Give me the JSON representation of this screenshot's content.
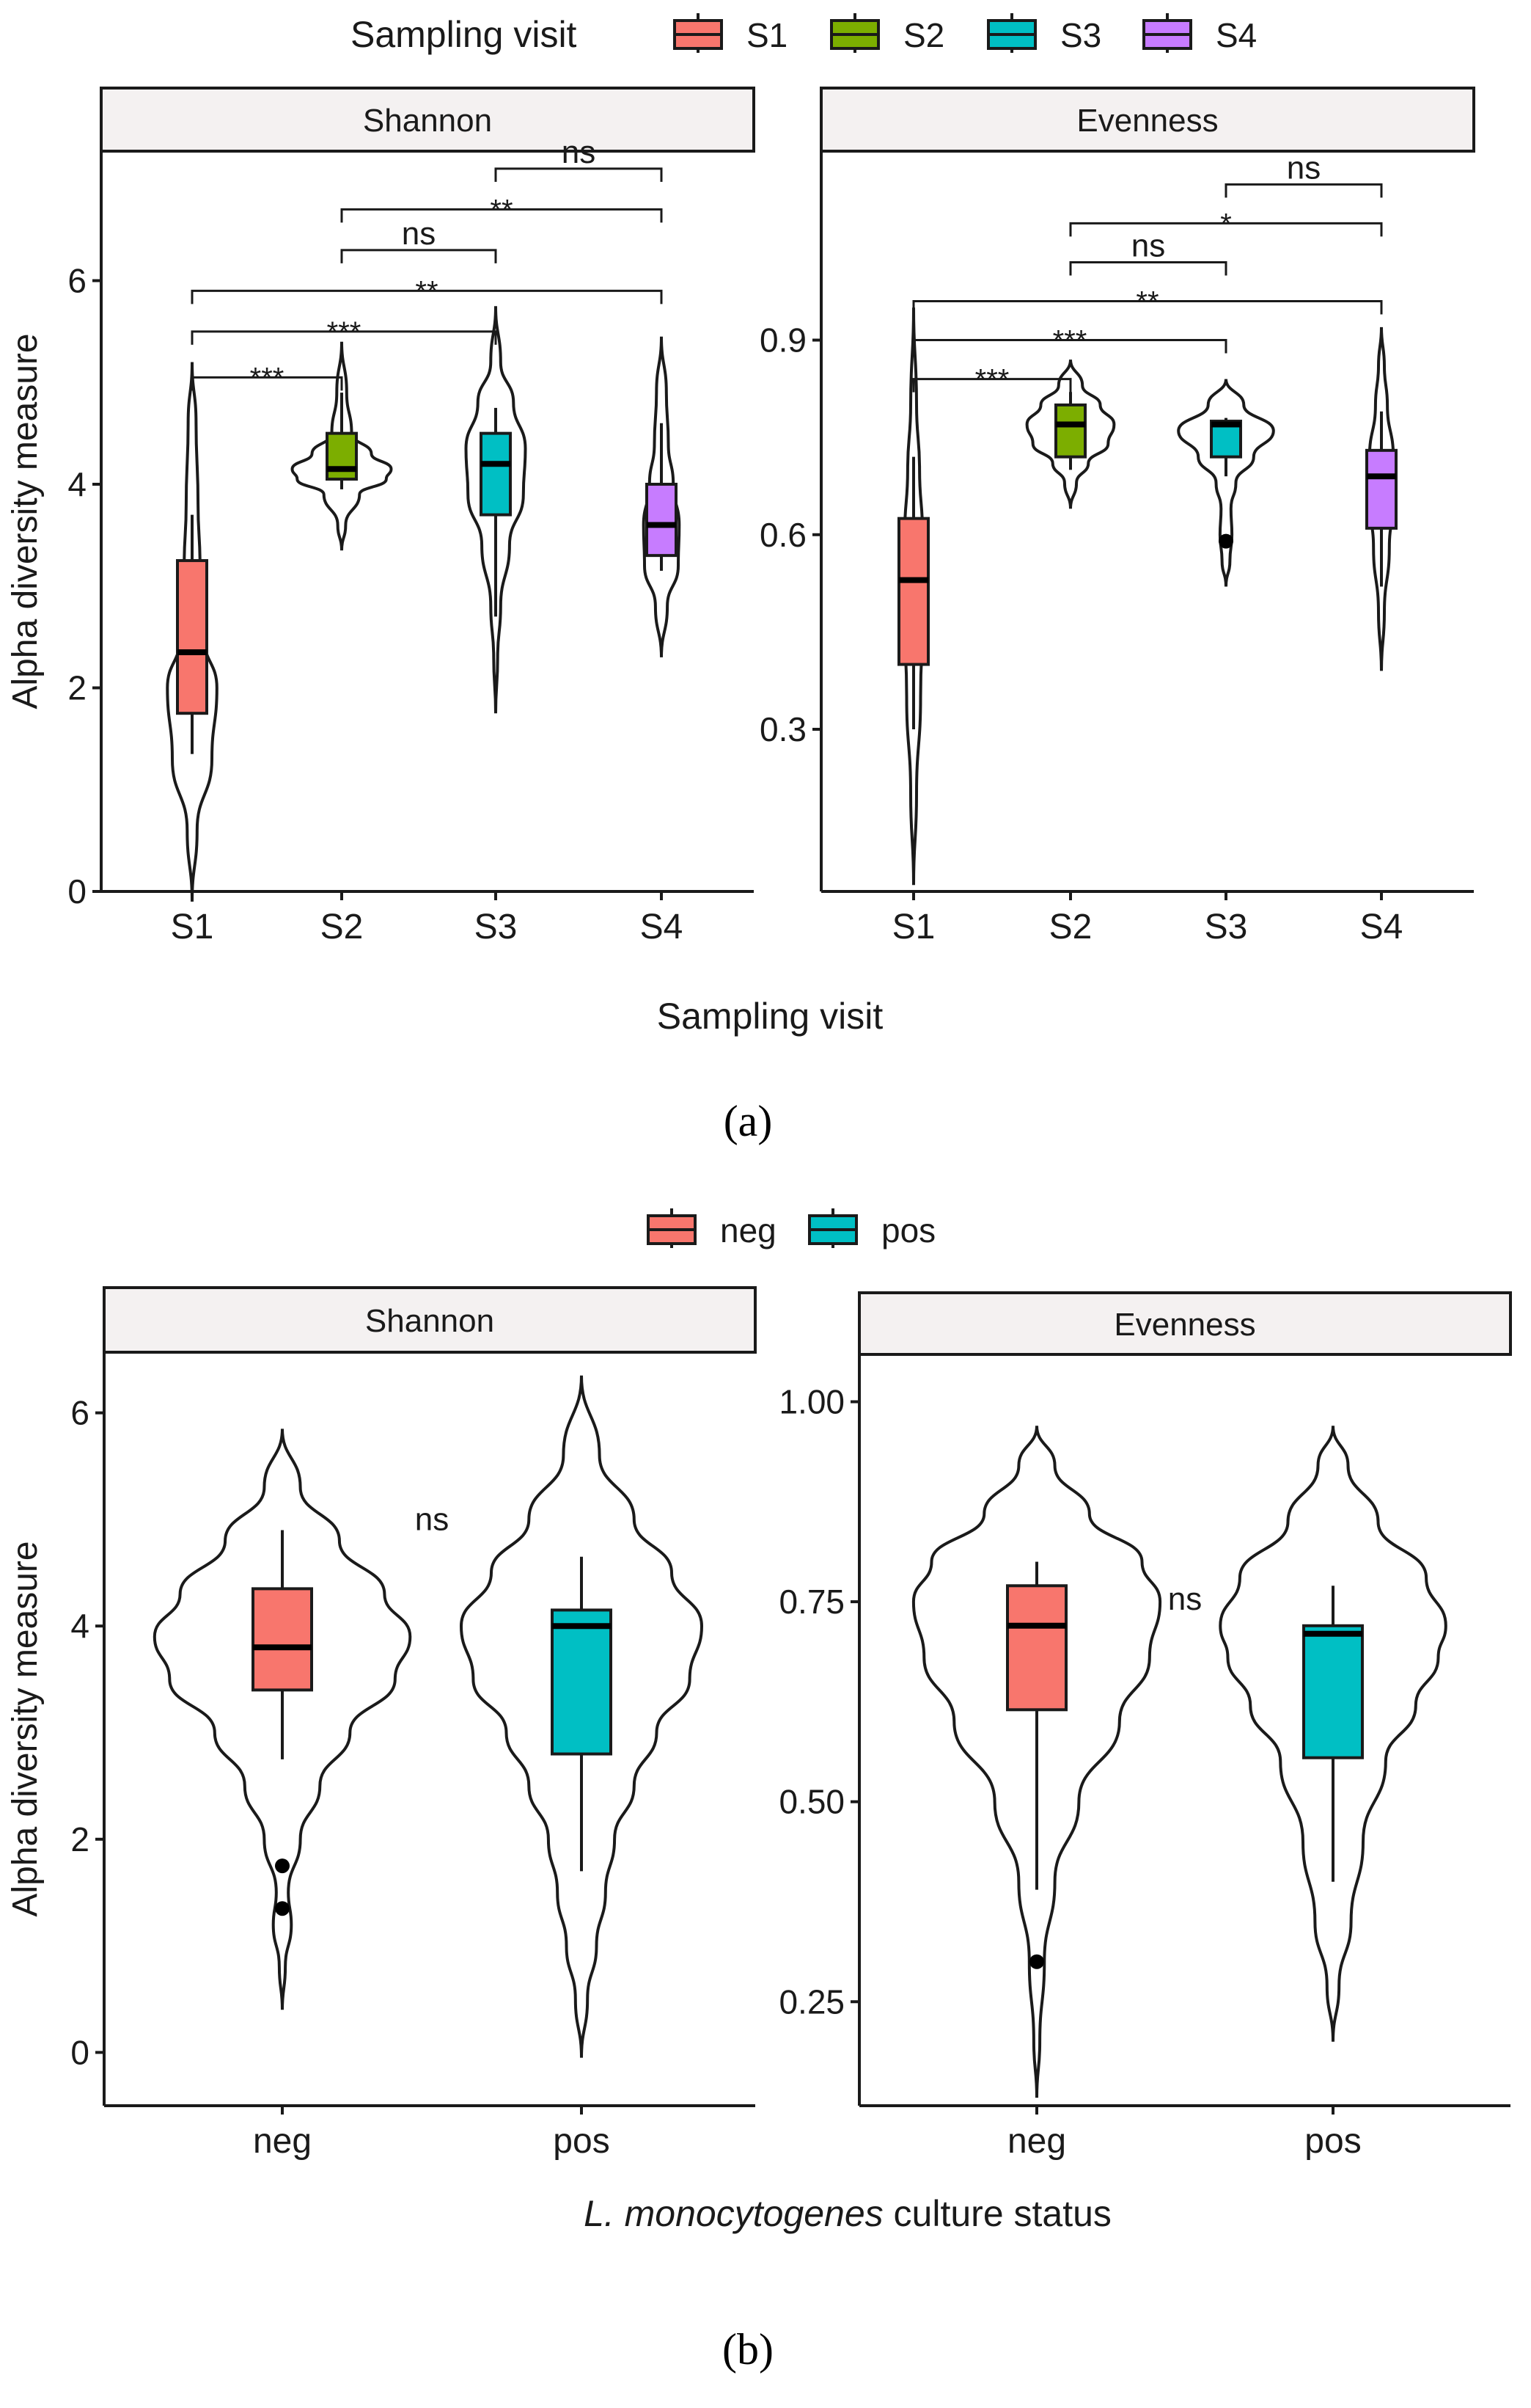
{
  "panel_a": {
    "caption": "(a)",
    "legend_title": "Sampling visit",
    "legend_items": [
      {
        "label": "S1",
        "color": "#F8766D"
      },
      {
        "label": "S2",
        "color": "#7CAE00"
      },
      {
        "label": "S3",
        "color": "#00BFC4"
      },
      {
        "label": "S4",
        "color": "#C77CFF"
      }
    ],
    "xlabel": "Sampling visit",
    "ylabel": "Alpha diversity measure"
  },
  "panel_b": {
    "caption": "(b)",
    "legend_items": [
      {
        "label": "neg",
        "color": "#F8766D"
      },
      {
        "label": "pos",
        "color": "#00BFC4"
      }
    ],
    "xlabel_italic": "L. monocytogenes",
    "xlabel_rest": " culture status",
    "ylabel": "Alpha diversity measure"
  },
  "chart_data": [
    {
      "type": "violin",
      "strip": "Shannon",
      "categories": [
        "S1",
        "S2",
        "S3",
        "S4"
      ],
      "ylim": [
        0,
        7.2
      ],
      "yticks": [
        0,
        2,
        4,
        6
      ],
      "ytick_labels": [
        "0",
        "2",
        "4",
        "6"
      ],
      "boxes": [
        {
          "category": "S1",
          "q1": 1.75,
          "median": 2.35,
          "q3": 3.25,
          "whisker_low": 1.35,
          "whisker_high": 3.7,
          "outliers": []
        },
        {
          "category": "S2",
          "q1": 4.05,
          "median": 4.15,
          "q3": 4.5,
          "whisker_low": 3.95,
          "whisker_high": 4.9,
          "outliers": []
        },
        {
          "category": "S3",
          "q1": 3.7,
          "median": 4.2,
          "q3": 4.5,
          "whisker_low": 2.7,
          "whisker_high": 4.75,
          "outliers": []
        },
        {
          "category": "S4",
          "q1": 3.3,
          "median": 3.6,
          "q3": 4.0,
          "whisker_low": 3.15,
          "whisker_high": 4.6,
          "outliers": []
        }
      ],
      "violins": [
        {
          "ymin": -0.1,
          "ymax": 5.2,
          "profile": [
            [
              -0.1,
              0.0
            ],
            [
              0.6,
              0.05
            ],
            [
              1.3,
              0.2
            ],
            [
              2.0,
              0.25
            ],
            [
              2.5,
              0.12
            ],
            [
              3.2,
              0.08
            ],
            [
              3.8,
              0.06
            ],
            [
              4.6,
              0.04
            ],
            [
              5.2,
              0.0
            ]
          ]
        },
        {
          "ymin": 3.35,
          "ymax": 5.4,
          "profile": [
            [
              3.35,
              0.0
            ],
            [
              3.6,
              0.04
            ],
            [
              3.9,
              0.18
            ],
            [
              4.05,
              0.45
            ],
            [
              4.15,
              0.5
            ],
            [
              4.3,
              0.3
            ],
            [
              4.5,
              0.1
            ],
            [
              4.9,
              0.05
            ],
            [
              5.4,
              0.0
            ]
          ]
        },
        {
          "ymin": 1.75,
          "ymax": 5.75,
          "profile": [
            [
              1.75,
              0.0
            ],
            [
              2.3,
              0.02
            ],
            [
              2.8,
              0.05
            ],
            [
              3.4,
              0.14
            ],
            [
              3.9,
              0.28
            ],
            [
              4.35,
              0.3
            ],
            [
              4.8,
              0.18
            ],
            [
              5.2,
              0.05
            ],
            [
              5.75,
              0.0
            ]
          ]
        },
        {
          "ymin": 2.3,
          "ymax": 5.45,
          "profile": [
            [
              2.3,
              0.0
            ],
            [
              2.8,
              0.06
            ],
            [
              3.2,
              0.17
            ],
            [
              3.6,
              0.18
            ],
            [
              4.0,
              0.12
            ],
            [
              4.4,
              0.07
            ],
            [
              4.9,
              0.05
            ],
            [
              5.45,
              0.0
            ]
          ]
        }
      ],
      "comparisons": [
        {
          "from": "S1",
          "to": "S2",
          "label": "***",
          "y": 5.05
        },
        {
          "from": "S1",
          "to": "S3",
          "label": "***",
          "y": 5.5
        },
        {
          "from": "S1",
          "to": "S4",
          "label": "**",
          "y": 5.9
        },
        {
          "from": "S2",
          "to": "S3",
          "label": "ns",
          "y": 6.3
        },
        {
          "from": "S2",
          "to": "S4",
          "label": "**",
          "y": 6.7
        },
        {
          "from": "S3",
          "to": "S4",
          "label": "ns",
          "y": 7.1
        }
      ]
    },
    {
      "type": "violin",
      "strip": "Evenness",
      "categories": [
        "S1",
        "S2",
        "S3",
        "S4"
      ],
      "ylim": [
        0.05,
        1.18
      ],
      "yticks": [
        0.3,
        0.6,
        0.9
      ],
      "ytick_labels": [
        "0.3",
        "0.6",
        "0.9"
      ],
      "boxes": [
        {
          "category": "S1",
          "q1": 0.4,
          "median": 0.53,
          "q3": 0.625,
          "whisker_low": 0.3,
          "whisker_high": 0.72,
          "outliers": []
        },
        {
          "category": "S2",
          "q1": 0.72,
          "median": 0.77,
          "q3": 0.8,
          "whisker_low": 0.7,
          "whisker_high": 0.82,
          "outliers": []
        },
        {
          "category": "S3",
          "q1": 0.72,
          "median": 0.77,
          "q3": 0.775,
          "whisker_low": 0.69,
          "whisker_high": 0.78,
          "outliers": [
            0.59
          ]
        },
        {
          "category": "S4",
          "q1": 0.61,
          "median": 0.69,
          "q3": 0.73,
          "whisker_low": 0.52,
          "whisker_high": 0.79,
          "outliers": []
        }
      ],
      "violins": [
        {
          "ymin": 0.06,
          "ymax": 0.95,
          "profile": [
            [
              0.06,
              0.0
            ],
            [
              0.2,
              0.03
            ],
            [
              0.35,
              0.07
            ],
            [
              0.5,
              0.1
            ],
            [
              0.6,
              0.09
            ],
            [
              0.7,
              0.06
            ],
            [
              0.8,
              0.03
            ],
            [
              0.95,
              0.0
            ]
          ]
        },
        {
          "ymin": 0.64,
          "ymax": 0.87,
          "profile": [
            [
              0.64,
              0.0
            ],
            [
              0.68,
              0.06
            ],
            [
              0.71,
              0.18
            ],
            [
              0.74,
              0.38
            ],
            [
              0.77,
              0.44
            ],
            [
              0.8,
              0.3
            ],
            [
              0.83,
              0.12
            ],
            [
              0.87,
              0.0
            ]
          ]
        },
        {
          "ymin": 0.52,
          "ymax": 0.84,
          "profile": [
            [
              0.52,
              0.0
            ],
            [
              0.56,
              0.04
            ],
            [
              0.6,
              0.06
            ],
            [
              0.64,
              0.05
            ],
            [
              0.68,
              0.1
            ],
            [
              0.72,
              0.28
            ],
            [
              0.76,
              0.48
            ],
            [
              0.8,
              0.18
            ],
            [
              0.84,
              0.0
            ]
          ]
        },
        {
          "ymin": 0.39,
          "ymax": 0.92,
          "profile": [
            [
              0.39,
              0.0
            ],
            [
              0.48,
              0.03
            ],
            [
              0.58,
              0.08
            ],
            [
              0.66,
              0.13
            ],
            [
              0.72,
              0.12
            ],
            [
              0.8,
              0.06
            ],
            [
              0.86,
              0.03
            ],
            [
              0.92,
              0.0
            ]
          ]
        }
      ],
      "comparisons": [
        {
          "from": "S1",
          "to": "S2",
          "label": "***",
          "y": 0.84
        },
        {
          "from": "S1",
          "to": "S3",
          "label": "***",
          "y": 0.9
        },
        {
          "from": "S1",
          "to": "S4",
          "label": "**",
          "y": 0.96
        },
        {
          "from": "S2",
          "to": "S3",
          "label": "ns",
          "y": 1.02
        },
        {
          "from": "S2",
          "to": "S4",
          "label": "*",
          "y": 1.08
        },
        {
          "from": "S3",
          "to": "S4",
          "label": "ns",
          "y": 1.14
        }
      ]
    },
    {
      "type": "violin",
      "strip": "Shannon",
      "categories": [
        "neg",
        "pos"
      ],
      "ylim": [
        -0.5,
        6.5
      ],
      "yticks": [
        0,
        2,
        4,
        6
      ],
      "ytick_labels": [
        "0",
        "2",
        "4",
        "6"
      ],
      "boxes": [
        {
          "category": "neg",
          "q1": 3.4,
          "median": 3.8,
          "q3": 4.35,
          "whisker_low": 2.75,
          "whisker_high": 4.9,
          "outliers": [
            1.75,
            1.35
          ]
        },
        {
          "category": "pos",
          "q1": 2.8,
          "median": 4.0,
          "q3": 4.15,
          "whisker_low": 1.7,
          "whisker_high": 4.65,
          "outliers": []
        }
      ],
      "violins": [
        {
          "ymin": 0.4,
          "ymax": 5.85,
          "profile": [
            [
              0.4,
              0.0
            ],
            [
              0.8,
              0.02
            ],
            [
              1.2,
              0.06
            ],
            [
              1.5,
              0.04
            ],
            [
              2.0,
              0.12
            ],
            [
              2.5,
              0.25
            ],
            [
              3.0,
              0.45
            ],
            [
              3.5,
              0.75
            ],
            [
              3.9,
              0.85
            ],
            [
              4.3,
              0.68
            ],
            [
              4.8,
              0.38
            ],
            [
              5.3,
              0.12
            ],
            [
              5.85,
              0.0
            ]
          ]
        },
        {
          "ymin": -0.05,
          "ymax": 6.35,
          "profile": [
            [
              -0.05,
              0.0
            ],
            [
              0.5,
              0.04
            ],
            [
              1.0,
              0.1
            ],
            [
              1.5,
              0.16
            ],
            [
              2.0,
              0.22
            ],
            [
              2.5,
              0.35
            ],
            [
              3.0,
              0.5
            ],
            [
              3.5,
              0.72
            ],
            [
              4.0,
              0.8
            ],
            [
              4.5,
              0.6
            ],
            [
              5.0,
              0.35
            ],
            [
              5.6,
              0.12
            ],
            [
              6.35,
              0.0
            ]
          ]
        }
      ],
      "comparisons": [
        {
          "from": "neg",
          "to": "pos",
          "label": "ns",
          "y": 4.9,
          "bracket": false
        }
      ]
    },
    {
      "type": "violin",
      "strip": "Evenness",
      "categories": [
        "neg",
        "pos"
      ],
      "ylim": [
        0.12,
        1.05
      ],
      "yticks": [
        0.25,
        0.5,
        0.75,
        1.0
      ],
      "ytick_labels": [
        "0.25",
        "0.50",
        "0.75",
        "1.00"
      ],
      "boxes": [
        {
          "category": "neg",
          "q1": 0.615,
          "median": 0.72,
          "q3": 0.77,
          "whisker_low": 0.39,
          "whisker_high": 0.8,
          "outliers": [
            0.3
          ]
        },
        {
          "category": "pos",
          "q1": 0.555,
          "median": 0.71,
          "q3": 0.72,
          "whisker_low": 0.4,
          "whisker_high": 0.77,
          "outliers": []
        }
      ],
      "violins": [
        {
          "ymin": 0.13,
          "ymax": 0.97,
          "profile": [
            [
              0.13,
              0.0
            ],
            [
              0.2,
              0.02
            ],
            [
              0.3,
              0.05
            ],
            [
              0.4,
              0.12
            ],
            [
              0.5,
              0.28
            ],
            [
              0.6,
              0.55
            ],
            [
              0.68,
              0.75
            ],
            [
              0.75,
              0.82
            ],
            [
              0.8,
              0.7
            ],
            [
              0.86,
              0.35
            ],
            [
              0.92,
              0.12
            ],
            [
              0.97,
              0.0
            ]
          ]
        },
        {
          "ymin": 0.2,
          "ymax": 0.97,
          "profile": [
            [
              0.2,
              0.0
            ],
            [
              0.27,
              0.04
            ],
            [
              0.35,
              0.12
            ],
            [
              0.45,
              0.2
            ],
            [
              0.55,
              0.35
            ],
            [
              0.62,
              0.55
            ],
            [
              0.68,
              0.7
            ],
            [
              0.72,
              0.75
            ],
            [
              0.78,
              0.62
            ],
            [
              0.85,
              0.3
            ],
            [
              0.92,
              0.1
            ],
            [
              0.97,
              0.0
            ]
          ]
        }
      ],
      "comparisons": [
        {
          "from": "neg",
          "to": "pos",
          "label": "ns",
          "y": 0.74,
          "bracket": false
        }
      ]
    }
  ]
}
